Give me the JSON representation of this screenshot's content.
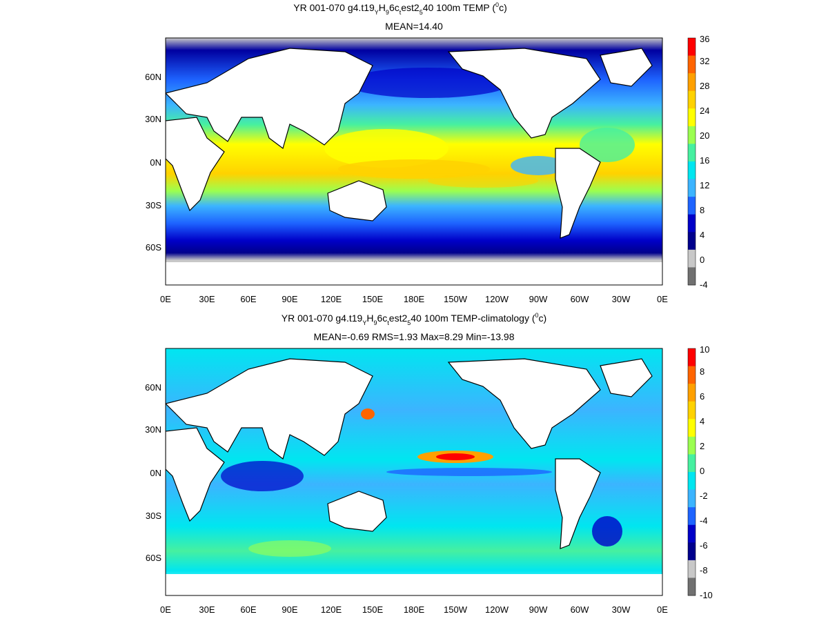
{
  "panels": [
    {
      "title_parts": {
        "a": "YR 001-070 g4.t19",
        "b": "H",
        "c": "6c",
        "d": "est2",
        "e": "40 100m TEMP (",
        "f": "c)",
        "sub_y": "Y",
        "sub_9": "9",
        "sub_t": "t",
        "sub_5": "5",
        "sup_0": "0"
      },
      "stats": "MEAN=14.40",
      "colorbar": {
        "labels": [
          "-4",
          "0",
          "4",
          "8",
          "12",
          "16",
          "20",
          "24",
          "28",
          "32",
          "36"
        ],
        "colors": [
          "#707070",
          "#c8c8c8",
          "#00008c",
          "#0000c8",
          "#1e64ff",
          "#3cb4ff",
          "#00e6f0",
          "#46f0a0",
          "#9bff50",
          "#ffff00",
          "#ffd200",
          "#ffa000",
          "#ff6400",
          "#ff0000"
        ]
      }
    },
    {
      "title_parts": {
        "a": "YR 001-070 g4.t19",
        "b": "H",
        "c": "6c",
        "d": "est2",
        "e": "40 100m TEMP-climatology (",
        "f": "c)",
        "sub_y": "Y",
        "sub_9": "9",
        "sub_t": "t",
        "sub_5": "5",
        "sup_0": "0"
      },
      "stats": "MEAN=-0.69   RMS=1.93   Max=8.29   Min=-13.98",
      "colorbar": {
        "labels": [
          "-10",
          "-8",
          "-6",
          "-4",
          "-2",
          "0",
          "2",
          "4",
          "6",
          "8",
          "10"
        ],
        "colors": [
          "#707070",
          "#c8c8c8",
          "#00008c",
          "#0000c8",
          "#1e64ff",
          "#3cb4ff",
          "#00e6f0",
          "#46f0a0",
          "#9bff50",
          "#ffff00",
          "#ffd200",
          "#ffa000",
          "#ff6400",
          "#ff0000"
        ]
      }
    }
  ],
  "lon_labels": [
    "0E",
    "30E",
    "60E",
    "90E",
    "120E",
    "150E",
    "180E",
    "150W",
    "120W",
    "90W",
    "60W",
    "30W",
    "0E"
  ],
  "lat_labels": [
    "60N",
    "30N",
    "0N",
    "30S",
    "60S"
  ]
}
